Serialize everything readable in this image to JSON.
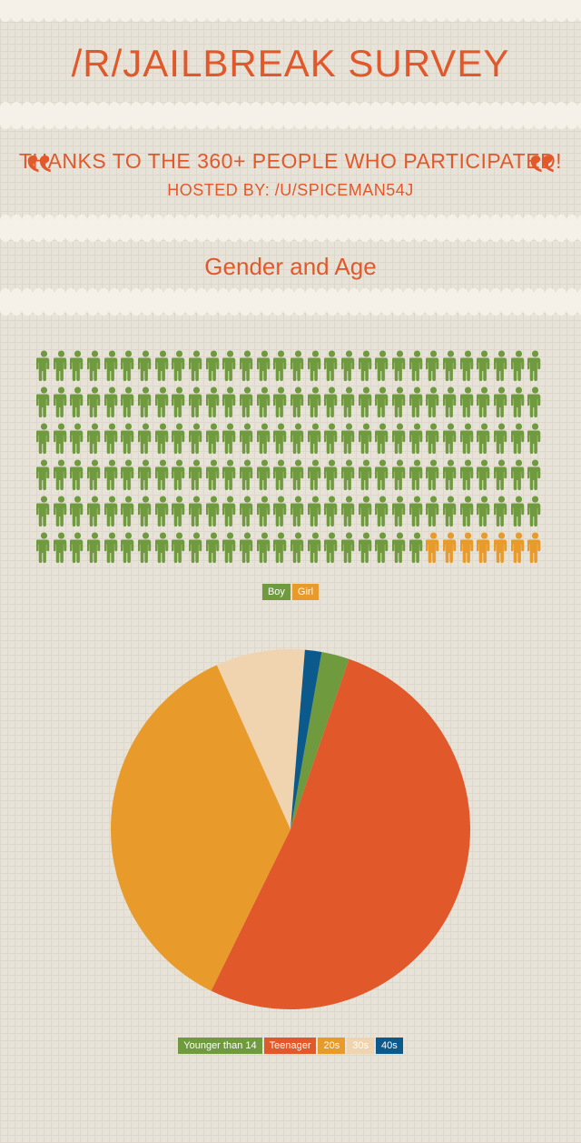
{
  "colors": {
    "accent": "#e1592a",
    "green": "#6f9a3e",
    "orange": "#e89a2a",
    "cream": "#f0d4b0",
    "blue": "#0c5a8c",
    "band": "#f5f1e8"
  },
  "title": "/R/JAILBREAK SURVEY",
  "thanks": {
    "line1": "THANKS TO THE 360+ PEOPLE WHO PARTICIPATED!",
    "line2": "HOSTED BY: /U/SPICEMAN54J"
  },
  "section1_title": "Gender and Age",
  "gender_pictograph": {
    "total": 180,
    "cols": 30,
    "rows": 6,
    "boy_count": 173,
    "girl_count": 7,
    "boy_color": "#6f9a3e",
    "girl_color": "#e89a2a",
    "legend": [
      {
        "label": "Boy",
        "color": "#6f9a3e"
      },
      {
        "label": "Girl",
        "color": "#e89a2a"
      }
    ]
  },
  "age_pie": {
    "type": "pie",
    "slices": [
      {
        "label": "Younger than 14",
        "value": 2.5,
        "color": "#6f9a3e"
      },
      {
        "label": "Teenager",
        "value": 52,
        "color": "#e1592a"
      },
      {
        "label": "20s",
        "value": 36,
        "color": "#e89a2a"
      },
      {
        "label": "30s",
        "value": 8,
        "color": "#f0d4b0"
      },
      {
        "label": "40s",
        "value": 1.5,
        "color": "#0c5a8c"
      }
    ],
    "start_angle_deg": -80,
    "radius": 198,
    "background": "transparent"
  }
}
